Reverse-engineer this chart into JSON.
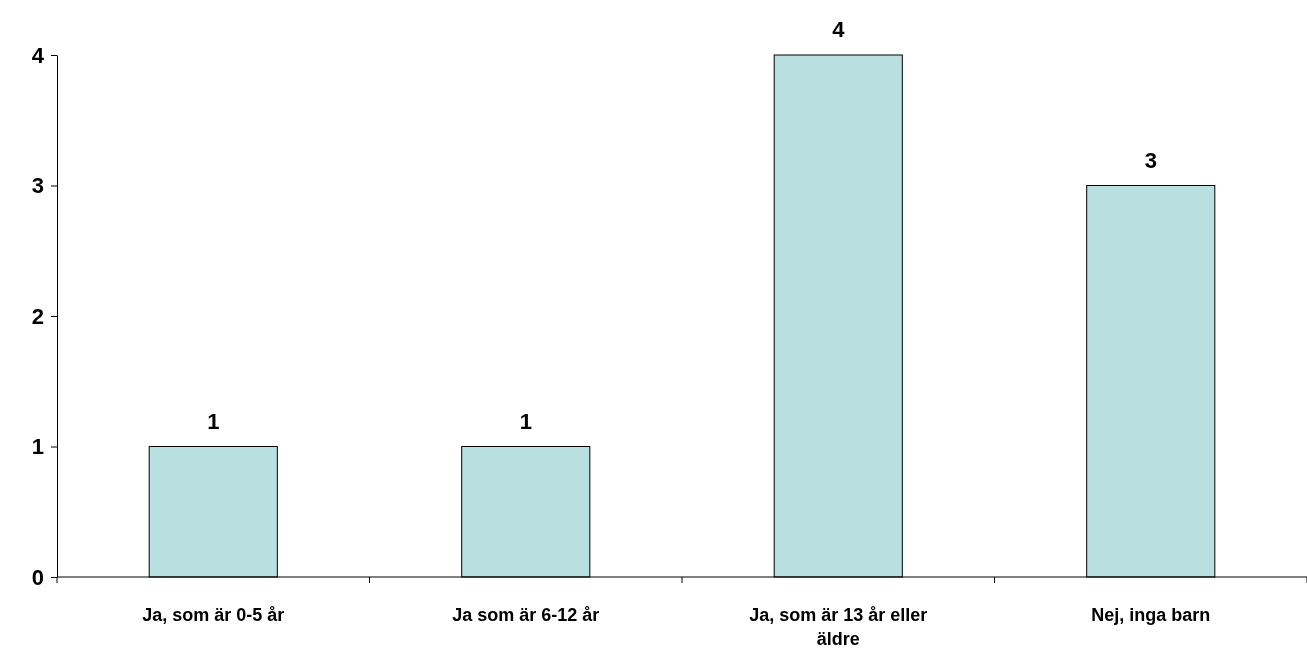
{
  "chart_data": {
    "type": "bar",
    "categories": [
      "Ja, som är 0-5 år",
      "Ja som är 6-12 år",
      "Ja, som är 13 år eller äldre",
      "Nej, inga barn"
    ],
    "values": [
      1,
      1,
      4,
      3
    ],
    "color": "#b9e0e0",
    "ylim": [
      0,
      4
    ],
    "yticks": [
      0,
      1,
      2,
      3,
      4
    ],
    "grid": false,
    "data_labels": true
  }
}
